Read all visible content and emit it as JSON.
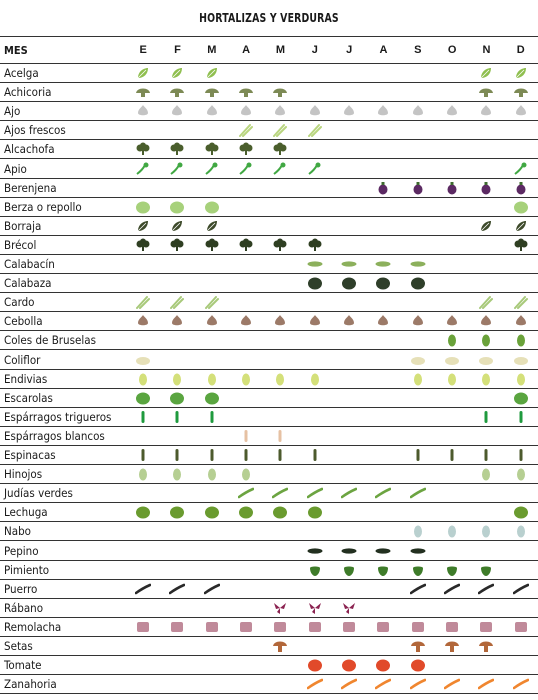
{
  "title": "HORTALIZAS Y VERDURAS",
  "header": {
    "label": "MES",
    "months": [
      "E",
      "F",
      "M",
      "A",
      "M",
      "J",
      "J",
      "A",
      "S",
      "O",
      "N",
      "D"
    ]
  },
  "rows": [
    {
      "name": "Acelga",
      "icon": "chard-leaf-icon",
      "color": "#8fbf4f",
      "months": [
        1,
        1,
        1,
        0,
        0,
        0,
        0,
        0,
        0,
        0,
        1,
        1
      ]
    },
    {
      "name": "Achicoria",
      "icon": "chicory-mushroom-icon",
      "color": "#7d8a55",
      "months": [
        1,
        1,
        1,
        1,
        1,
        0,
        0,
        0,
        0,
        0,
        1,
        1
      ]
    },
    {
      "name": "Ajo",
      "icon": "garlic-bulb-icon",
      "color": "#c4c4c4",
      "months": [
        1,
        1,
        1,
        1,
        1,
        1,
        1,
        1,
        1,
        1,
        1,
        1
      ]
    },
    {
      "name": "Ajos frescos",
      "icon": "green-garlic-stalk-icon",
      "color": "#b9d57f",
      "months": [
        0,
        0,
        0,
        1,
        1,
        1,
        0,
        0,
        0,
        0,
        0,
        0
      ]
    },
    {
      "name": "Alcachofa",
      "icon": "artichoke-icon",
      "color": "#4a5e2c",
      "months": [
        1,
        1,
        1,
        1,
        1,
        0,
        0,
        0,
        0,
        0,
        0,
        0
      ]
    },
    {
      "name": "Apio",
      "icon": "celery-icon",
      "color": "#41a843",
      "months": [
        1,
        1,
        1,
        1,
        1,
        1,
        0,
        0,
        0,
        0,
        0,
        1
      ]
    },
    {
      "name": "Berenjena",
      "icon": "eggplant-icon",
      "color": "#5c2a63",
      "months": [
        0,
        0,
        0,
        0,
        0,
        0,
        0,
        1,
        1,
        1,
        1,
        1
      ]
    },
    {
      "name": "Berza o repollo",
      "icon": "cabbage-icon",
      "color": "#a7d17b",
      "months": [
        1,
        1,
        1,
        0,
        0,
        0,
        0,
        0,
        0,
        0,
        0,
        1
      ]
    },
    {
      "name": "Borraja",
      "icon": "borage-leaf-icon",
      "color": "#3d4a2a",
      "months": [
        1,
        1,
        1,
        0,
        0,
        0,
        0,
        0,
        0,
        0,
        1,
        1
      ]
    },
    {
      "name": "Brécol",
      "icon": "broccoli-icon",
      "color": "#2f3f22",
      "months": [
        1,
        1,
        1,
        1,
        1,
        1,
        0,
        0,
        0,
        0,
        0,
        1
      ]
    },
    {
      "name": "Calabacín",
      "icon": "zucchini-icon",
      "color": "#8cb05c",
      "months": [
        0,
        0,
        0,
        0,
        0,
        1,
        1,
        1,
        1,
        0,
        0,
        0
      ]
    },
    {
      "name": "Calabaza",
      "icon": "squash-icon",
      "color": "#2f3f2a",
      "months": [
        0,
        0,
        0,
        0,
        0,
        1,
        1,
        1,
        1,
        0,
        0,
        0
      ]
    },
    {
      "name": "Cardo",
      "icon": "cardoon-icon",
      "color": "#a8c97a",
      "months": [
        1,
        1,
        1,
        0,
        0,
        0,
        0,
        0,
        0,
        0,
        1,
        1
      ]
    },
    {
      "name": "Cebolla",
      "icon": "onion-icon",
      "color": "#9c7a68",
      "months": [
        1,
        1,
        1,
        1,
        1,
        1,
        1,
        1,
        1,
        1,
        1,
        1
      ]
    },
    {
      "name": "Coles de Bruselas",
      "icon": "brussels-sprout-icon",
      "color": "#6aa23a",
      "months": [
        0,
        0,
        0,
        0,
        0,
        0,
        0,
        0,
        0,
        1,
        1,
        1
      ]
    },
    {
      "name": "Coliflor",
      "icon": "cauliflower-icon",
      "color": "#e6e0b8",
      "months": [
        1,
        0,
        0,
        0,
        0,
        0,
        0,
        0,
        1,
        1,
        1,
        1
      ]
    },
    {
      "name": "Endivias",
      "icon": "endive-icon",
      "color": "#d4e07a",
      "months": [
        1,
        1,
        1,
        1,
        1,
        1,
        0,
        0,
        1,
        1,
        1,
        1
      ]
    },
    {
      "name": "Escarolas",
      "icon": "escarole-icon",
      "color": "#5aa540",
      "months": [
        1,
        1,
        1,
        0,
        0,
        0,
        0,
        0,
        0,
        0,
        0,
        1
      ]
    },
    {
      "name": "Espárragos trigueros",
      "icon": "green-asparagus-icon",
      "color": "#1f9a3e",
      "months": [
        1,
        1,
        1,
        0,
        0,
        0,
        0,
        0,
        0,
        0,
        1,
        1
      ]
    },
    {
      "name": "Espárragos blancos",
      "icon": "white-asparagus-icon",
      "color": "#e6c1a3",
      "months": [
        0,
        0,
        0,
        1,
        1,
        0,
        0,
        0,
        0,
        0,
        0,
        0
      ]
    },
    {
      "name": "Espinacas",
      "icon": "spinach-icon",
      "color": "#4c5a2d",
      "months": [
        1,
        1,
        1,
        1,
        1,
        1,
        0,
        0,
        1,
        1,
        1,
        1
      ]
    },
    {
      "name": "Hinojos",
      "icon": "fennel-icon",
      "color": "#b6cf93",
      "months": [
        1,
        1,
        1,
        1,
        0,
        0,
        0,
        0,
        0,
        0,
        1,
        1
      ]
    },
    {
      "name": "Judías verdes",
      "icon": "green-bean-icon",
      "color": "#6ca441",
      "months": [
        0,
        0,
        0,
        1,
        1,
        1,
        1,
        1,
        1,
        0,
        0,
        0
      ]
    },
    {
      "name": "Lechuga",
      "icon": "lettuce-icon",
      "color": "#6a9b2f",
      "months": [
        1,
        1,
        1,
        1,
        1,
        1,
        0,
        0,
        0,
        0,
        0,
        1
      ]
    },
    {
      "name": "Nabo",
      "icon": "turnip-icon",
      "color": "#b9d0cf",
      "months": [
        0,
        0,
        0,
        0,
        0,
        0,
        0,
        0,
        1,
        1,
        1,
        1
      ]
    },
    {
      "name": "Pepino",
      "icon": "cucumber-icon",
      "color": "#233020",
      "months": [
        0,
        0,
        0,
        0,
        0,
        1,
        1,
        1,
        1,
        0,
        0,
        0
      ]
    },
    {
      "name": "Pimiento",
      "icon": "pepper-icon",
      "color": "#3f7c2a",
      "months": [
        0,
        0,
        0,
        0,
        0,
        1,
        1,
        1,
        1,
        1,
        1,
        0
      ]
    },
    {
      "name": "Puerro",
      "icon": "leek-icon",
      "color": "#2a2a2a",
      "months": [
        1,
        1,
        1,
        0,
        0,
        0,
        0,
        0,
        1,
        1,
        1,
        1
      ]
    },
    {
      "name": "Rábano",
      "icon": "radish-icon",
      "color": "#8a2250",
      "months": [
        0,
        0,
        0,
        0,
        1,
        1,
        1,
        0,
        0,
        0,
        0,
        0
      ]
    },
    {
      "name": "Remolacha",
      "icon": "beetroot-icon",
      "color": "#c08a9a",
      "months": [
        1,
        1,
        1,
        1,
        1,
        1,
        1,
        1,
        1,
        1,
        1,
        1
      ]
    },
    {
      "name": "Setas",
      "icon": "mushroom-icon",
      "color": "#b2673a",
      "months": [
        0,
        0,
        0,
        0,
        1,
        0,
        0,
        0,
        1,
        1,
        1,
        0
      ]
    },
    {
      "name": "Tomate",
      "icon": "tomato-icon",
      "color": "#e14a2a",
      "months": [
        0,
        0,
        0,
        0,
        0,
        1,
        1,
        1,
        1,
        0,
        0,
        0
      ]
    },
    {
      "name": "Zanahoria",
      "icon": "carrot-icon",
      "color": "#f0862f",
      "months": [
        0,
        0,
        0,
        0,
        0,
        1,
        1,
        1,
        1,
        1,
        1,
        1
      ]
    }
  ]
}
